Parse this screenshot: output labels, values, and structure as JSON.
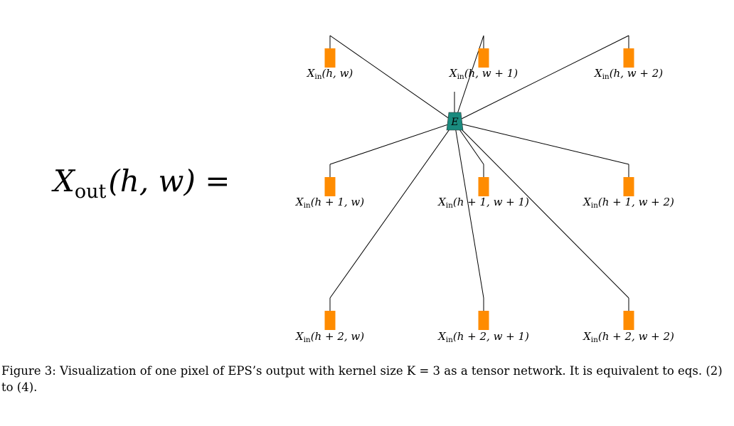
{
  "figure": {
    "lhs": {
      "symbol": "X",
      "subscript": "out",
      "args": "(h, w) ="
    },
    "center_node": {
      "label": "E",
      "color": "#1a8a7e"
    },
    "tensor_color": "#ff8c00",
    "nodes": [
      {
        "sym": "X",
        "sub": "in",
        "args": "(h, w)"
      },
      {
        "sym": "X",
        "sub": "in",
        "args": "(h, w + 1)"
      },
      {
        "sym": "X",
        "sub": "in",
        "args": "(h, w + 2)"
      },
      {
        "sym": "X",
        "sub": "in",
        "args": "(h + 1, w)"
      },
      {
        "sym": "X",
        "sub": "in",
        "args": "(h + 1, w + 1)"
      },
      {
        "sym": "X",
        "sub": "in",
        "args": "(h + 1, w + 2)"
      },
      {
        "sym": "X",
        "sub": "in",
        "args": "(h + 2, w)"
      },
      {
        "sym": "X",
        "sub": "in",
        "args": "(h + 2, w + 1)"
      },
      {
        "sym": "X",
        "sub": "in",
        "args": "(h + 2, w + 2)"
      }
    ]
  },
  "caption": "Figure 3: Visualization of one pixel of EPS’s output with kernel size K = 3 as a tensor network. It is equivalent to eqs. (2) to (4)."
}
